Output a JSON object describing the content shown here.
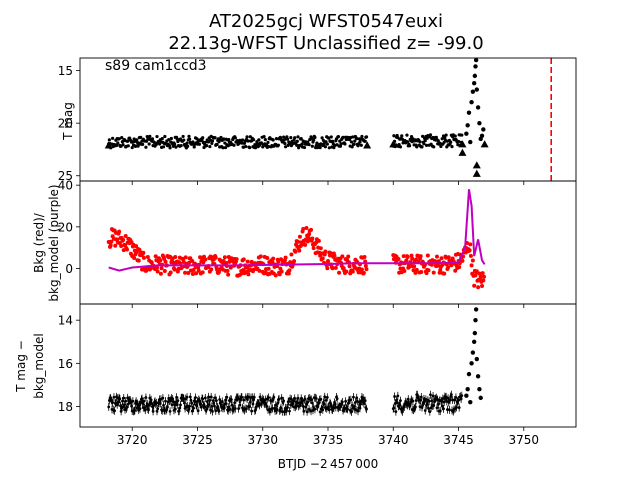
{
  "figure": {
    "title_line1": "AT2025gcj  WFST0547euxi",
    "title_line2": "22.13g-WFST Unclassified z= -99.0",
    "xlabel": "BTJD −2 457 000",
    "x_ticks": [
      "3720",
      "3725",
      "3730",
      "3735",
      "3740",
      "3745",
      "3750"
    ],
    "xlim": [
      3716.0,
      3754.0
    ]
  },
  "chart_data": [
    {
      "type": "scatter",
      "panel": "top",
      "annotation": "s89 cam1ccd3",
      "ylabel": "T mag",
      "ylim": [
        25.5,
        13.8
      ],
      "inverted_y": true,
      "y_ticks": [
        15,
        20,
        25
      ],
      "y_tick_labels": [
        "15",
        "20",
        "25"
      ],
      "segments": [
        {
          "x_start": 3718.2,
          "x_end": 3738.0,
          "y_center": 21.8,
          "y_spread": 0.55
        },
        {
          "x_start": 3740.0,
          "x_end": 3745.3,
          "y_center": 21.7,
          "y_spread": 0.6
        }
      ],
      "upper_limits_marker": "triangle",
      "spike_points": [
        {
          "x": 3745.6,
          "y": 21.0
        },
        {
          "x": 3745.7,
          "y": 20.2
        },
        {
          "x": 3745.8,
          "y": 19.0
        },
        {
          "x": 3745.9,
          "y": 21.8
        },
        {
          "x": 3746.0,
          "y": 18.0
        },
        {
          "x": 3746.1,
          "y": 17.0
        },
        {
          "x": 3746.2,
          "y": 16.2
        },
        {
          "x": 3746.25,
          "y": 15.5
        },
        {
          "x": 3746.3,
          "y": 14.6
        },
        {
          "x": 3746.35,
          "y": 14.0
        },
        {
          "x": 3746.4,
          "y": 16.8
        },
        {
          "x": 3746.5,
          "y": 18.5
        },
        {
          "x": 3746.6,
          "y": 20.0
        },
        {
          "x": 3746.7,
          "y": 21.5
        },
        {
          "x": 3746.8,
          "y": 21.2
        },
        {
          "x": 3746.9,
          "y": 20.6
        }
      ],
      "vline": {
        "x": 3752.1,
        "color": "#ff0000",
        "style": "dashed"
      },
      "colors": {
        "points": "#000000"
      }
    },
    {
      "type": "line",
      "panel": "middle",
      "ylabel_line1": "Bkg (red)/",
      "ylabel_line2": "bkg_model (purple)",
      "ylim": [
        -17.0,
        42.0
      ],
      "y_ticks": [
        0,
        20,
        40
      ],
      "y_tick_labels": [
        "0",
        "20",
        "40"
      ],
      "series": [
        {
          "name": "Bkg",
          "color": "#ff0000",
          "marker": "dot",
          "x": [
            3718.2,
            3718.6,
            3719.0,
            3719.4,
            3719.8,
            3720.2,
            3720.6,
            3721.0,
            3722.0,
            3724.0,
            3726.0,
            3728.0,
            3730.0,
            3731.0,
            3732.0,
            3732.6,
            3733.0,
            3733.4,
            3733.8,
            3734.2,
            3734.6,
            3735.0,
            3736.0,
            3737.0,
            3738.0,
            3740.0,
            3741.0,
            3742.0,
            3743.0,
            3744.0,
            3745.0,
            3745.4,
            3745.8,
            3746.2,
            3746.6,
            3747.0
          ],
          "y": [
            14,
            15,
            14,
            13,
            11,
            8,
            5,
            2,
            2,
            1,
            2,
            1,
            2,
            1,
            2,
            10,
            15,
            16,
            14,
            10,
            6,
            4,
            2,
            2,
            2,
            2,
            2,
            2,
            2,
            2,
            3,
            6,
            12,
            -4,
            -6,
            -5
          ],
          "spread": 4.5
        },
        {
          "name": "bkg_model",
          "color": "#c000c0",
          "marker": "line",
          "x": [
            3718.2,
            3719.0,
            3720.0,
            3722.0,
            3725.0,
            3728.0,
            3731.0,
            3733.0,
            3735.0,
            3737.0,
            3738.0,
            3740.0,
            3743.0,
            3745.0,
            3745.5,
            3745.8,
            3746.0,
            3746.2,
            3746.5,
            3746.8,
            3747.0
          ],
          "y": [
            0.5,
            -1.0,
            0.5,
            1.5,
            1.5,
            1.5,
            1.8,
            2.0,
            2.2,
            2.5,
            2.5,
            2.5,
            2.5,
            2.8,
            10,
            38,
            30,
            6,
            14,
            4,
            2
          ]
        }
      ]
    },
    {
      "type": "scatter",
      "panel": "bottom",
      "ylabel_line1": "T mag −",
      "ylabel_line2": "bkg_model",
      "ylim": [
        18.95,
        13.25
      ],
      "inverted_y": true,
      "y_ticks": [
        14,
        16,
        18
      ],
      "y_tick_labels": [
        "14",
        "16",
        "18"
      ],
      "segments": [
        {
          "x_start": 3718.2,
          "x_end": 3738.0,
          "y_center": 17.9,
          "y_spread": 0.35
        },
        {
          "x_start": 3740.0,
          "x_end": 3745.3,
          "y_center": 17.85,
          "y_spread": 0.4
        }
      ],
      "spike_points": [
        {
          "x": 3745.6,
          "y": 17.5
        },
        {
          "x": 3745.7,
          "y": 17.2
        },
        {
          "x": 3745.8,
          "y": 16.5
        },
        {
          "x": 3745.9,
          "y": 17.8
        },
        {
          "x": 3746.0,
          "y": 16.0
        },
        {
          "x": 3746.1,
          "y": 15.5
        },
        {
          "x": 3746.2,
          "y": 15.0
        },
        {
          "x": 3746.25,
          "y": 14.6
        },
        {
          "x": 3746.3,
          "y": 14.0
        },
        {
          "x": 3746.35,
          "y": 13.5
        },
        {
          "x": 3746.4,
          "y": 15.8
        },
        {
          "x": 3746.5,
          "y": 16.6
        },
        {
          "x": 3746.6,
          "y": 17.2
        },
        {
          "x": 3746.7,
          "y": 17.6
        }
      ],
      "colors": {
        "points": "#000000"
      }
    }
  ]
}
